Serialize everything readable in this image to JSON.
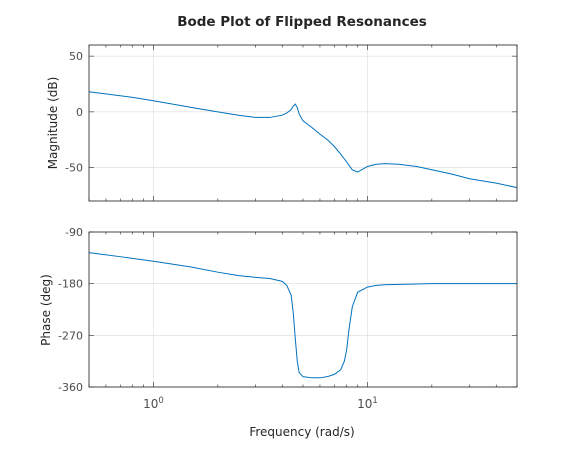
{
  "chart_data": {
    "type": "line",
    "title": "Bode Plot of Flipped Resonances",
    "xlabel": "Frequency (rad/s)",
    "xscale": "log",
    "xlim": [
      0.5,
      50
    ],
    "grid": true,
    "line_color": "#0072bd",
    "x_ticks": [
      {
        "value": 1,
        "base": "10",
        "exp": "0"
      },
      {
        "value": 10,
        "base": "10",
        "exp": "1"
      }
    ],
    "subplots": [
      {
        "name": "magnitude",
        "ylabel": "Magnitude (dB)",
        "ylim": [
          -80,
          60
        ],
        "yticks": [
          50,
          0,
          -50
        ],
        "x": [
          0.5,
          0.8,
          1.0,
          1.5,
          2.0,
          2.5,
          3.0,
          3.5,
          4.0,
          4.2,
          4.4,
          4.5,
          4.6,
          4.7,
          4.8,
          5.0,
          5.5,
          6.0,
          6.5,
          7.0,
          7.5,
          8.0,
          8.5,
          9.0,
          10.0,
          11.0,
          12.0,
          14.0,
          17.0,
          20.0,
          25.0,
          30.0,
          40.0,
          50.0
        ],
        "y": [
          18,
          13,
          10,
          4,
          0,
          -3,
          -5,
          -5,
          -3,
          -1,
          2,
          5,
          7,
          4,
          -2,
          -8,
          -14,
          -20,
          -25,
          -31,
          -38,
          -45,
          -52,
          -54,
          -49,
          -47,
          -46.5,
          -47,
          -49,
          -52,
          -56,
          -60,
          -64,
          -68
        ]
      },
      {
        "name": "phase",
        "ylabel": "Phase (deg)",
        "ylim": [
          -360,
          -90
        ],
        "yticks": [
          -90,
          -180,
          -270,
          -360
        ],
        "x": [
          0.5,
          0.7,
          1.0,
          1.5,
          2.0,
          2.5,
          3.0,
          3.5,
          4.0,
          4.2,
          4.4,
          4.5,
          4.6,
          4.7,
          4.8,
          5.0,
          5.5,
          6.0,
          6.5,
          7.0,
          7.5,
          7.8,
          8.0,
          8.2,
          8.5,
          9.0,
          10.0,
          11.0,
          12.0,
          15.0,
          20.0,
          30.0,
          50.0
        ],
        "y": [
          -126,
          -133,
          -141,
          -151,
          -160,
          -166,
          -169,
          -171,
          -176,
          -183,
          -200,
          -230,
          -275,
          -315,
          -335,
          -342,
          -344,
          -344,
          -342,
          -338,
          -330,
          -315,
          -295,
          -260,
          -220,
          -195,
          -186,
          -183,
          -182,
          -181,
          -180,
          -180,
          -180
        ]
      }
    ]
  }
}
